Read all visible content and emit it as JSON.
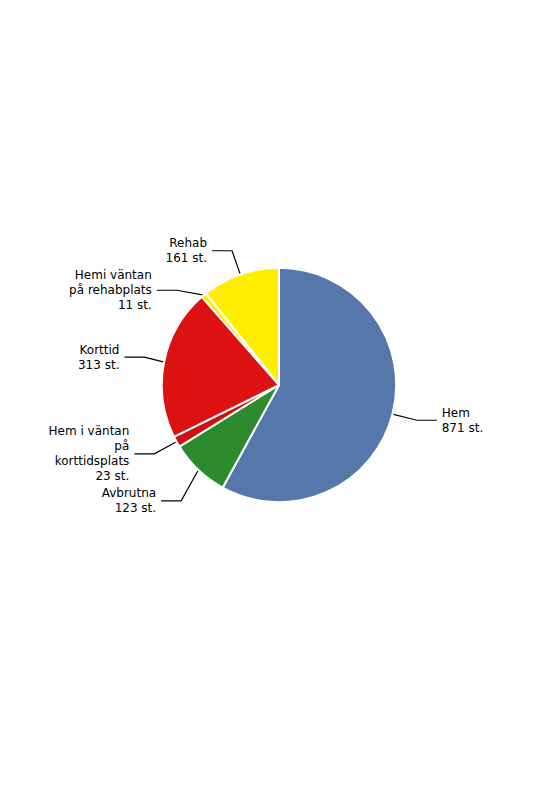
{
  "chart_data": {
    "type": "pie",
    "categories": [
      "Hem",
      "Avbrutna",
      "Hem i väntan\npå\nkorttidsplats",
      "Korttid",
      "Hemi väntan\npå rehabplats",
      "Rehab"
    ],
    "values": [
      871,
      123,
      23,
      313,
      11,
      161
    ],
    "value_labels": [
      "871 st.",
      "123 st.",
      "23 st.",
      "313 st.",
      "11 st.",
      "161 st."
    ],
    "colors": [
      "#5577aa",
      "#2d8a2d",
      "#cc1111",
      "#dd1111",
      "#ffee00",
      "#ffee00"
    ],
    "data_labels": true
  }
}
